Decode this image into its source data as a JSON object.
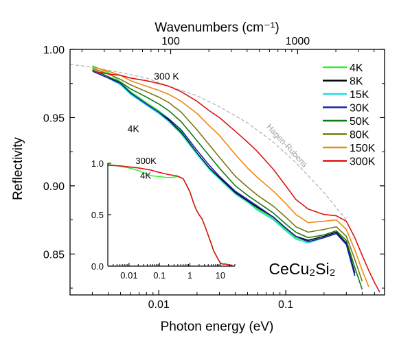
{
  "chart_data": [
    {
      "type": "line",
      "title": "",
      "material_label": "CeCu₂Si₂",
      "xlabel": "Photon energy (eV)",
      "ylabel": "Reflectivity",
      "x2label": "Wavenumbers (cm⁻¹)",
      "xscale": "log",
      "xlim": [
        0.002,
        0.6
      ],
      "ylim": [
        0.82,
        1.0
      ],
      "x_ticks": [
        {
          "value": 0.01,
          "label": "0.01"
        },
        {
          "value": 0.1,
          "label": "0.1"
        }
      ],
      "y_ticks": [
        {
          "value": 0.85,
          "label": "0.85"
        },
        {
          "value": 0.9,
          "label": "0.90"
        },
        {
          "value": 0.95,
          "label": "0.95"
        },
        {
          "value": 1.0,
          "label": "1.00"
        }
      ],
      "x2_ticks": [
        {
          "value": 100,
          "label": "100"
        },
        {
          "value": 1000,
          "label": "1000"
        }
      ],
      "grid": false,
      "legend_position": "top-right",
      "annotations": [
        {
          "text": "300 K",
          "x": 0.0115,
          "y": 0.978
        },
        {
          "text": "4K",
          "x": 0.0063,
          "y": 0.9395
        },
        {
          "text": "Hagen-Rubens",
          "x": 0.07,
          "y": 0.943
        }
      ],
      "reference_curve": {
        "name": "Hagen-Rubens",
        "color": "#b4b4b4",
        "x": [
          0.002,
          0.003,
          0.005,
          0.008,
          0.012,
          0.02,
          0.03,
          0.05,
          0.08,
          0.12,
          0.2,
          0.3
        ],
        "y": [
          0.989,
          0.987,
          0.983,
          0.979,
          0.973,
          0.966,
          0.958,
          0.946,
          0.932,
          0.917,
          0.895,
          0.875
        ]
      },
      "x": [
        0.003,
        0.004,
        0.005,
        0.006,
        0.008,
        0.01,
        0.012,
        0.015,
        0.02,
        0.025,
        0.03,
        0.04,
        0.05,
        0.06,
        0.08,
        0.1,
        0.12,
        0.15,
        0.2,
        0.25,
        0.3,
        0.35,
        0.4,
        0.45,
        0.5,
        0.55
      ],
      "series": [
        {
          "name": "4K",
          "color": "#33ee33",
          "values": [
            0.988,
            0.983,
            0.976,
            0.969,
            0.961,
            0.955,
            0.949,
            0.94,
            0.924,
            0.913,
            0.905,
            0.894,
            0.888,
            0.883,
            0.876,
            0.868,
            0.862,
            0.859,
            0.862,
            0.865,
            0.857,
            0.835,
            null,
            null,
            null,
            null
          ]
        },
        {
          "name": "8K",
          "color": "#000000",
          "values": [
            0.985,
            0.98,
            0.975,
            0.968,
            0.96,
            0.954,
            0.948,
            0.939,
            0.924,
            0.913,
            0.906,
            0.895,
            0.889,
            0.884,
            0.877,
            0.869,
            0.863,
            0.86,
            0.863,
            0.866,
            0.858,
            0.836,
            null,
            null,
            null,
            null
          ]
        },
        {
          "name": "15K",
          "color": "#22dddd",
          "values": [
            0.984,
            0.979,
            0.974,
            0.967,
            0.959,
            0.953,
            0.947,
            0.938,
            0.923,
            0.912,
            0.905,
            0.894,
            0.888,
            0.882,
            0.875,
            0.867,
            0.861,
            0.858,
            0.862,
            0.865,
            0.857,
            0.834,
            null,
            null,
            null,
            null
          ]
        },
        {
          "name": "30K",
          "color": "#1a1ab4",
          "values": [
            0.984,
            0.979,
            0.975,
            0.968,
            0.96,
            0.954,
            0.949,
            0.941,
            0.926,
            0.915,
            0.907,
            0.896,
            0.89,
            0.885,
            0.877,
            0.869,
            0.863,
            0.859,
            0.862,
            0.865,
            0.857,
            0.834,
            null,
            null,
            null,
            null
          ]
        },
        {
          "name": "50K",
          "color": "#117711",
          "values": [
            0.985,
            0.98,
            0.976,
            0.971,
            0.965,
            0.96,
            0.955,
            0.947,
            0.933,
            0.922,
            0.913,
            0.9,
            0.893,
            0.888,
            0.88,
            0.872,
            0.866,
            0.862,
            0.864,
            0.867,
            0.86,
            0.84,
            0.824,
            null,
            null,
            null
          ]
        },
        {
          "name": "80K",
          "color": "#777711",
          "values": [
            0.986,
            0.982,
            0.978,
            0.974,
            0.969,
            0.965,
            0.961,
            0.954,
            0.941,
            0.93,
            0.921,
            0.907,
            0.899,
            0.893,
            0.885,
            0.877,
            0.87,
            0.866,
            0.868,
            0.87,
            0.863,
            0.846,
            0.83,
            null,
            null,
            null
          ]
        },
        {
          "name": "150K",
          "color": "#ee8811",
          "values": [
            0.987,
            0.984,
            0.981,
            0.977,
            0.973,
            0.97,
            0.967,
            0.962,
            0.953,
            0.944,
            0.937,
            0.923,
            0.913,
            0.906,
            0.896,
            0.887,
            0.879,
            0.873,
            0.874,
            0.875,
            0.868,
            0.853,
            0.838,
            0.826,
            null,
            null
          ]
        },
        {
          "name": "300K",
          "color": "#dd1111",
          "values": [
            0.984,
            0.982,
            0.981,
            0.979,
            0.977,
            0.975,
            0.973,
            0.969,
            0.962,
            0.955,
            0.95,
            0.94,
            0.932,
            0.925,
            0.912,
            0.9,
            0.89,
            0.883,
            0.879,
            0.878,
            0.874,
            0.862,
            0.849,
            0.838,
            0.829,
            0.822
          ]
        }
      ]
    },
    {
      "type": "line",
      "title": "",
      "xscale": "log",
      "xlim": [
        0.002,
        30
      ],
      "ylim": [
        0,
        1
      ],
      "x_ticks": [
        {
          "value": 0.01,
          "label": "0.01"
        },
        {
          "value": 0.1,
          "label": "0.1"
        },
        {
          "value": 1,
          "label": "1"
        },
        {
          "value": 10,
          "label": "10"
        }
      ],
      "y_ticks": [
        {
          "value": 0,
          "label": "0.0"
        },
        {
          "value": 0.5,
          "label": "0.5"
        },
        {
          "value": 1,
          "label": "1.0"
        }
      ],
      "annotations": [
        {
          "text": "300K",
          "x": 0.036,
          "y": 0.995
        },
        {
          "text": "4K",
          "x": 0.035,
          "y": 0.85
        }
      ],
      "x": [
        0.002,
        0.005,
        0.01,
        0.02,
        0.05,
        0.1,
        0.2,
        0.4,
        0.6,
        0.8,
        1,
        1.3,
        1.6,
        2,
        2.5,
        3,
        4,
        5,
        6,
        8,
        10,
        12,
        15,
        20,
        25
      ],
      "series": [
        {
          "name": "4K",
          "color": "#33ee33",
          "values": [
            0.99,
            0.97,
            0.955,
            0.93,
            0.88,
            0.87,
            0.86,
            0.87,
            0.85,
            0.78,
            0.72,
            0.62,
            0.55,
            0.5,
            0.46,
            0.4,
            0.3,
            0.22,
            0.15,
            0.08,
            0.03,
            0.02,
            0.02,
            0.01,
            0.01
          ]
        },
        {
          "name": "300K",
          "color": "#dd1111",
          "values": [
            0.98,
            0.975,
            0.965,
            0.955,
            0.935,
            0.91,
            0.89,
            0.875,
            0.85,
            0.78,
            0.72,
            0.62,
            0.55,
            0.5,
            0.46,
            0.4,
            0.3,
            0.22,
            0.15,
            0.08,
            0.03,
            0.02,
            0.02,
            0.01,
            0.01
          ]
        }
      ]
    }
  ]
}
